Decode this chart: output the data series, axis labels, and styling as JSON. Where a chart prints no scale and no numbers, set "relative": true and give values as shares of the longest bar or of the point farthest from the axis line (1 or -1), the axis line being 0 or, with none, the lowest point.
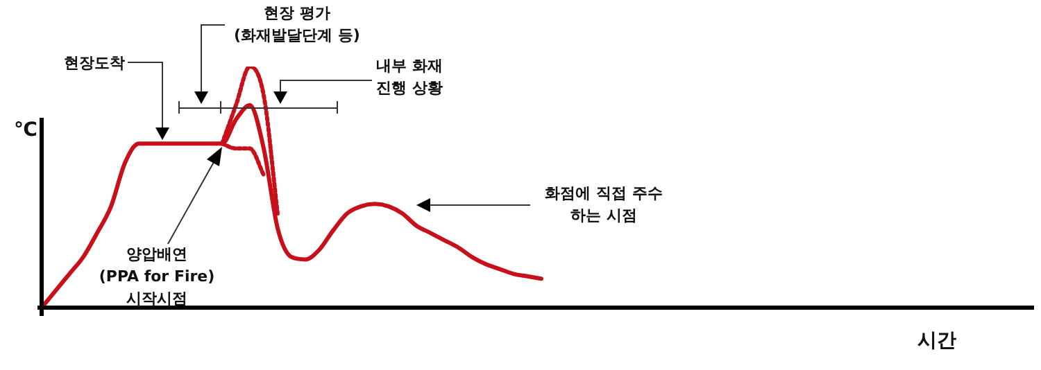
{
  "chart_data": {
    "type": "line",
    "relative": true,
    "xlabel": "시간",
    "ylabel": "℃",
    "marker": "none",
    "legend": false,
    "categories": [
      null,
      null,
      null,
      null,
      null,
      null,
      null,
      null,
      null,
      null,
      null,
      null,
      null,
      null,
      null,
      null,
      null,
      null,
      null,
      null,
      null,
      null,
      null,
      null,
      null,
      null,
      null,
      null,
      null,
      null,
      null,
      null,
      null,
      null,
      null,
      null,
      null,
      null,
      null,
      null,
      null,
      null,
      null,
      null,
      null,
      null,
      null,
      null,
      null,
      null,
      null,
      null,
      null,
      null,
      null,
      null,
      null,
      null,
      null,
      null,
      null,
      null,
      null,
      null,
      null,
      null,
      null,
      null,
      null,
      null,
      null,
      null
    ],
    "series": [
      {
        "color": "#c8101a",
        "line_style": "solid",
        "values": [
          0,
          0.07,
          0.14,
          0.21,
          0.31,
          0.42,
          0.6,
          0.68,
          0.68,
          0.68,
          0.68,
          0.68,
          0.68,
          0.68,
          0.78,
          0.84,
          0.66,
          0.33,
          0.21,
          0.2,
          0.24,
          0.32,
          0.39,
          0.42,
          0.43,
          0.42,
          0.39,
          0.34,
          0.31,
          0.28,
          0.25,
          0.21,
          0.18,
          0.16,
          0.14,
          0.13,
          0.12,
          null,
          null,
          null,
          null,
          null,
          null,
          null,
          null,
          null,
          null,
          null,
          null,
          null,
          null,
          null,
          null,
          null,
          null,
          null,
          null,
          null,
          null,
          null,
          null,
          null,
          null,
          null,
          null,
          null,
          null,
          null,
          null,
          null,
          null,
          null
        ]
      },
      {
        "color": "#c8101a",
        "line_style": "dotted",
        "values": [
          null,
          null,
          null,
          null,
          null,
          null,
          null,
          null,
          null,
          null,
          null,
          null,
          null,
          0.68,
          0.84,
          1,
          0.88,
          0.39,
          null,
          null,
          null,
          null,
          null,
          null,
          null,
          null,
          null,
          null,
          null,
          null,
          null,
          null,
          null,
          null,
          null,
          null,
          null,
          null,
          null,
          null,
          null,
          null,
          null,
          null,
          null,
          null,
          null,
          null,
          null,
          null,
          null,
          null,
          null,
          null,
          null,
          null,
          null,
          null,
          null,
          null,
          null,
          null,
          null,
          null,
          null,
          null,
          null,
          null,
          null,
          null,
          null,
          null
        ]
      },
      {
        "color": "#c8101a",
        "line_style": "dotted",
        "values": [
          null,
          null,
          null,
          null,
          null,
          null,
          null,
          null,
          null,
          null,
          null,
          null,
          null,
          0.68,
          0.66,
          0.66,
          0.55,
          null,
          null,
          null,
          null,
          null,
          null,
          null,
          null,
          null,
          null,
          null,
          null,
          null,
          null,
          null,
          null,
          null,
          null,
          null,
          null,
          null,
          null,
          null,
          null,
          null,
          null,
          null,
          null,
          null,
          null,
          null,
          null,
          null,
          null,
          null,
          null,
          null,
          null,
          null,
          null,
          null,
          null,
          null,
          null,
          null,
          null,
          null,
          null,
          null,
          null,
          null,
          null,
          null,
          null,
          null
        ]
      }
    ],
    "annotations": [
      "현장도착",
      "현장 평가\n(화재발달단계 등)",
      "내부 화재\n진행 상황",
      "화점에 직접 주수\n하는 시점",
      "양압배연\n(PPA for Fire)\n시작시점"
    ]
  }
}
